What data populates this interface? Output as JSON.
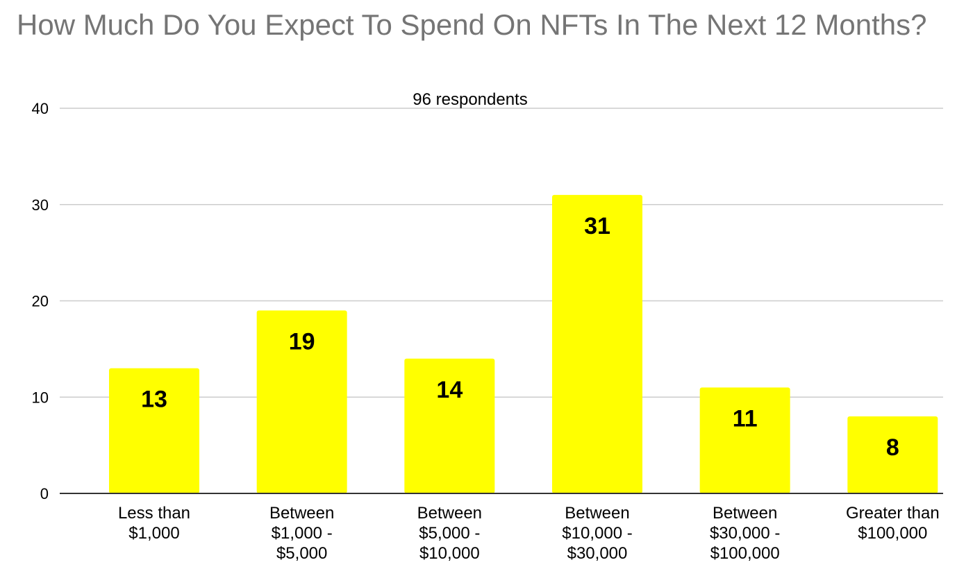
{
  "chart_data": {
    "type": "bar",
    "title": "How Much Do You Expect To Spend On NFTs In The Next 12 Months?",
    "subtitle": "96 respondents",
    "categories": [
      [
        "Less than",
        "$1,000"
      ],
      [
        "Between",
        "$1,000 -",
        "$5,000"
      ],
      [
        "Between",
        "$5,000 -",
        "$10,000"
      ],
      [
        "Between",
        "$10,000 -",
        "$30,000"
      ],
      [
        "Between",
        "$30,000 -",
        "$100,000"
      ],
      [
        "Greater than",
        "$100,000"
      ]
    ],
    "values": [
      13,
      19,
      14,
      31,
      11,
      8
    ],
    "ylim": [
      0,
      40
    ],
    "yticks": [
      0,
      10,
      20,
      30,
      40
    ],
    "grid": true,
    "legend": "none",
    "colors": {
      "bar": "#ffff00",
      "title": "#757575",
      "grid": "#cccccc",
      "axis": "#333333"
    }
  }
}
